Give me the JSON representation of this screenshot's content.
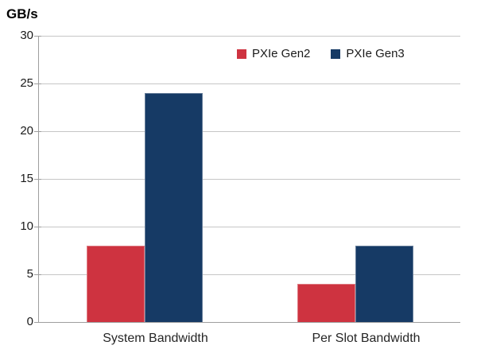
{
  "chart_data": {
    "type": "bar",
    "title": "",
    "ylabel": "GB/s",
    "xlabel": "",
    "categories": [
      "System Bandwidth",
      "Per Slot Bandwidth"
    ],
    "series": [
      {
        "name": "PXIe Gen2",
        "color": "#ce3340",
        "values": [
          8,
          4
        ]
      },
      {
        "name": "PXIe Gen3",
        "color": "#163a65",
        "values": [
          24,
          8
        ]
      }
    ],
    "ylim": [
      0,
      30
    ],
    "yticks": [
      0,
      5,
      10,
      15,
      20,
      25,
      30
    ],
    "grid": true,
    "legend_position": "top-inside"
  },
  "colors": {
    "gridline": "#c6c6c6",
    "axis": "#9e9e9e",
    "tick_text": "#1a1a1a",
    "category_text": "#262626",
    "background": "#ffffff"
  }
}
